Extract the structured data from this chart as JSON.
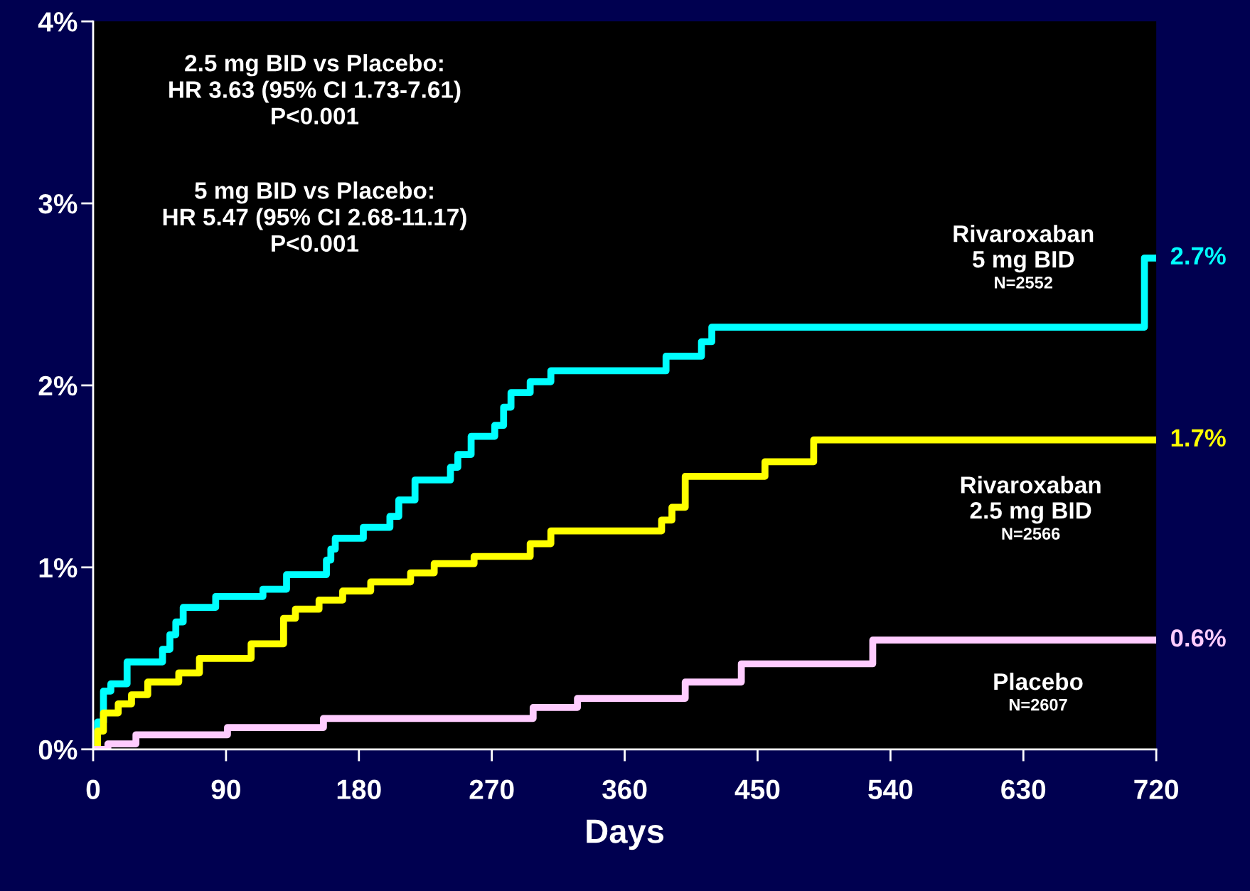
{
  "chart_data": {
    "type": "step",
    "xlabel": "Days",
    "xlim": [
      0,
      720
    ],
    "xticks": [
      0,
      90,
      180,
      270,
      360,
      450,
      540,
      630,
      720
    ],
    "ylim": [
      0,
      4
    ],
    "yticks": [
      {
        "value": 0,
        "label": "0%"
      },
      {
        "value": 1,
        "label": "1%"
      },
      {
        "value": 2,
        "label": "2%"
      },
      {
        "value": 3,
        "label": "3%"
      },
      {
        "value": 4,
        "label": "4%"
      }
    ],
    "grid": false,
    "legend": false,
    "line_style": "solid",
    "marker": "none",
    "series": [
      {
        "name": "Rivaroxaban\n5 mg BID",
        "color": "#00ffff",
        "x": [
          0,
          3,
          7,
          12,
          23,
          47,
          52,
          56,
          61,
          83,
          115,
          131,
          158,
          161,
          164,
          183,
          201,
          207,
          218,
          242,
          247,
          256,
          272,
          278,
          283,
          296,
          310,
          388,
          412,
          419,
          712,
          720
        ],
        "values": [
          0,
          0.15,
          0.32,
          0.36,
          0.48,
          0.55,
          0.63,
          0.7,
          0.78,
          0.84,
          0.88,
          0.96,
          1.04,
          1.1,
          1.16,
          1.22,
          1.28,
          1.37,
          1.48,
          1.55,
          1.62,
          1.72,
          1.78,
          1.88,
          1.96,
          2.02,
          2.08,
          2.16,
          2.24,
          2.32,
          2.7,
          2.7
        ]
      },
      {
        "name": "Rivaroxaban\n2.5 mg BID",
        "color": "#ffff00",
        "x": [
          0,
          3,
          7,
          17,
          26,
          37,
          58,
          72,
          107,
          129,
          137,
          153,
          169,
          188,
          215,
          231,
          258,
          296,
          310,
          385,
          392,
          401,
          455,
          488,
          720
        ],
        "values": [
          0,
          0.1,
          0.2,
          0.25,
          0.3,
          0.37,
          0.42,
          0.5,
          0.58,
          0.72,
          0.77,
          0.82,
          0.87,
          0.92,
          0.97,
          1.02,
          1.06,
          1.13,
          1.2,
          1.26,
          1.33,
          1.5,
          1.58,
          1.7,
          1.7
        ]
      },
      {
        "name": "Placebo",
        "color": "#ffccff",
        "x": [
          0,
          10,
          29,
          91,
          156,
          298,
          328,
          401,
          439,
          528,
          720
        ],
        "values": [
          0,
          0.03,
          0.08,
          0.12,
          0.17,
          0.23,
          0.28,
          0.37,
          0.47,
          0.6,
          0.6
        ]
      }
    ],
    "annotations": [
      "2.5 mg BID vs Placebo:\nHR 3.63 (95% CI 1.73-7.61)\nP<0.001",
      "5 mg BID vs Placebo:\nHR 5.47 (95% CI 2.68-11.17)\nP<0.001",
      "N=2552",
      "N=2566",
      "N=2607",
      "2.7%",
      "1.7%",
      "0.6%"
    ]
  }
}
